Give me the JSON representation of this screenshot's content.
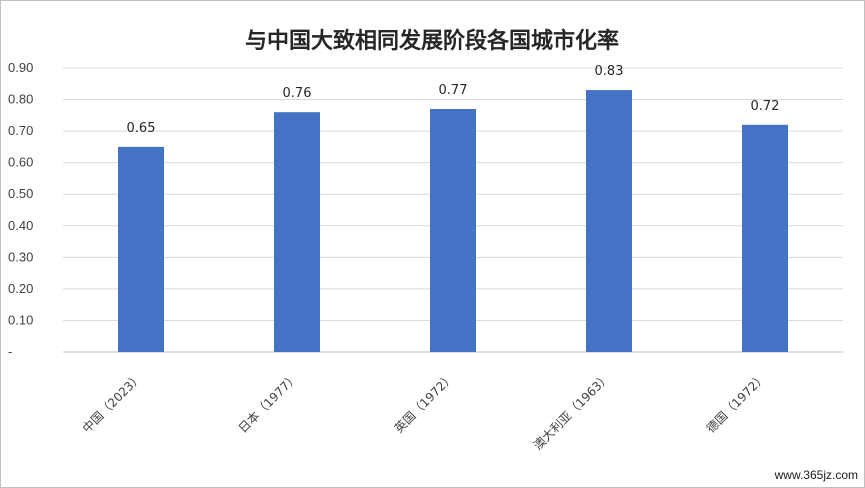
{
  "chart_data": {
    "type": "bar",
    "title": "与中国大致相同发展阶段各国城市化率",
    "categories": [
      "中国（2023）",
      "日本（1977）",
      "英国（1972）",
      "澳大利亚（1963）",
      "德国（1972）"
    ],
    "values": [
      0.65,
      0.76,
      0.77,
      0.83,
      0.72
    ],
    "value_labels": [
      "0.65",
      "0.76",
      "0.77",
      "0.83",
      "0.72"
    ],
    "y_ticks": [
      "-",
      "0.10",
      "0.20",
      "0.30",
      "0.40",
      "0.50",
      "0.60",
      "0.70",
      "0.80",
      "0.90"
    ],
    "ylim": [
      0,
      0.9
    ],
    "xlabel": "",
    "ylabel": "",
    "grid": true,
    "legend": "none",
    "bar_color": "#4472C4"
  },
  "watermark": "www.365jz.com"
}
